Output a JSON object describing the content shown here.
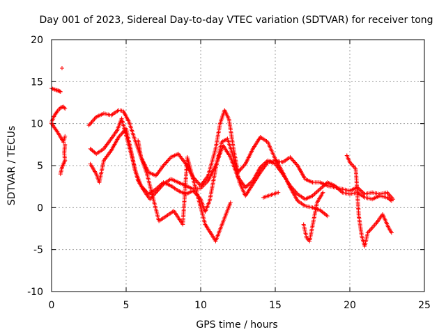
{
  "chart_data": {
    "type": "scatter",
    "title": "Day 001 of 2023, Sidereal Day-to-day VTEC variation (SDTVAR) for receiver tong",
    "xlabel": "GPS time / hours",
    "ylabel": "SDTVAR / TECUs",
    "xlim": [
      0,
      25
    ],
    "ylim": [
      -10,
      20
    ],
    "xticks": [
      "0",
      "5",
      "10",
      "15",
      "20",
      "25"
    ],
    "yticks": [
      "-10",
      "-5",
      "0",
      "5",
      "10",
      "15",
      "20"
    ],
    "grid": true,
    "marker": "+",
    "color": "#ff0000",
    "series": [
      {
        "name": "trace-a",
        "points": [
          [
            0.0,
            14.2
          ],
          [
            0.3,
            14.0
          ],
          [
            0.5,
            13.9
          ],
          [
            0.6,
            13.8
          ]
        ]
      },
      {
        "name": "outlier",
        "points": [
          [
            0.7,
            16.6
          ]
        ]
      },
      {
        "name": "trace-b",
        "points": [
          [
            0.0,
            10.2
          ],
          [
            0.2,
            11.0
          ],
          [
            0.4,
            11.5
          ],
          [
            0.6,
            11.9
          ],
          [
            0.8,
            12.0
          ],
          [
            0.9,
            11.8
          ]
        ]
      },
      {
        "name": "trace-c",
        "points": [
          [
            0.0,
            10.0
          ],
          [
            0.2,
            9.5
          ],
          [
            0.4,
            9.0
          ],
          [
            0.6,
            8.4
          ],
          [
            0.8,
            7.8
          ],
          [
            0.9,
            8.5
          ]
        ]
      },
      {
        "name": "trace-d",
        "points": [
          [
            0.6,
            4.0
          ],
          [
            0.7,
            4.8
          ],
          [
            0.8,
            5.2
          ],
          [
            0.9,
            5.6
          ],
          [
            0.85,
            6.5
          ],
          [
            0.9,
            7.5
          ]
        ]
      },
      {
        "name": "trace-e",
        "points": [
          [
            2.5,
            9.8
          ],
          [
            3.0,
            10.8
          ],
          [
            3.5,
            11.2
          ],
          [
            4.0,
            11.0
          ],
          [
            4.5,
            11.6
          ],
          [
            4.8,
            11.5
          ],
          [
            5.2,
            10.2
          ],
          [
            5.6,
            8.0
          ],
          [
            6.0,
            6.0
          ],
          [
            6.5,
            4.2
          ],
          [
            7.0,
            3.8
          ],
          [
            7.5,
            5.0
          ],
          [
            8.0,
            6.0
          ],
          [
            8.5,
            6.4
          ],
          [
            9.0,
            5.2
          ],
          [
            9.5,
            3.6
          ],
          [
            10.0,
            2.6
          ],
          [
            10.5,
            3.8
          ],
          [
            11.0,
            7.0
          ],
          [
            11.3,
            10.0
          ],
          [
            11.6,
            11.6
          ],
          [
            11.9,
            10.5
          ],
          [
            12.2,
            7.0
          ],
          [
            12.5,
            4.2
          ],
          [
            13.0,
            5.2
          ],
          [
            13.5,
            7.0
          ],
          [
            14.0,
            8.4
          ],
          [
            14.5,
            7.8
          ],
          [
            15.0,
            5.8
          ],
          [
            15.5,
            4.2
          ],
          [
            16.0,
            2.4
          ],
          [
            16.5,
            0.8
          ],
          [
            17.0,
            0.2
          ],
          [
            17.5,
            0.0
          ],
          [
            18.0,
            -0.3
          ],
          [
            18.5,
            -1.0
          ]
        ]
      },
      {
        "name": "trace-f",
        "points": [
          [
            2.6,
            7.0
          ],
          [
            3.0,
            6.4
          ],
          [
            3.5,
            7.0
          ],
          [
            4.0,
            8.2
          ],
          [
            4.4,
            9.2
          ],
          [
            4.7,
            10.6
          ],
          [
            5.0,
            8.6
          ],
          [
            5.4,
            6.0
          ],
          [
            5.8,
            3.2
          ],
          [
            6.2,
            2.0
          ],
          [
            6.6,
            1.0
          ],
          [
            7.0,
            1.8
          ],
          [
            7.5,
            2.8
          ],
          [
            8.0,
            3.4
          ],
          [
            8.5,
            3.0
          ],
          [
            9.0,
            2.6
          ],
          [
            9.5,
            2.2
          ],
          [
            10.0,
            2.3
          ],
          [
            10.5,
            3.2
          ],
          [
            11.0,
            5.0
          ],
          [
            11.5,
            7.4
          ],
          [
            12.0,
            6.0
          ],
          [
            12.5,
            3.6
          ],
          [
            13.0,
            2.4
          ],
          [
            13.5,
            3.2
          ],
          [
            14.0,
            4.8
          ],
          [
            14.5,
            5.6
          ],
          [
            15.0,
            5.2
          ],
          [
            15.5,
            4.0
          ],
          [
            16.0,
            2.6
          ],
          [
            16.5,
            1.6
          ],
          [
            17.0,
            1.0
          ],
          [
            17.5,
            1.4
          ],
          [
            18.0,
            2.2
          ],
          [
            18.5,
            3.0
          ],
          [
            19.0,
            2.6
          ],
          [
            19.5,
            1.8
          ],
          [
            20.0,
            1.6
          ],
          [
            20.5,
            1.8
          ],
          [
            21.0,
            1.2
          ],
          [
            21.5,
            1.0
          ],
          [
            22.0,
            1.4
          ],
          [
            22.5,
            1.2
          ],
          [
            22.8,
            0.8
          ]
        ]
      },
      {
        "name": "trace-g",
        "points": [
          [
            2.6,
            5.2
          ],
          [
            3.0,
            4.0
          ],
          [
            3.2,
            3.0
          ],
          [
            3.5,
            5.6
          ],
          [
            4.0,
            6.8
          ],
          [
            4.5,
            8.4
          ],
          [
            5.0,
            9.4
          ],
          [
            5.3,
            7.0
          ],
          [
            5.6,
            4.4
          ],
          [
            6.0,
            2.6
          ],
          [
            6.5,
            1.6
          ],
          [
            7.0,
            2.2
          ],
          [
            7.5,
            3.0
          ],
          [
            8.0,
            2.6
          ],
          [
            8.5,
            2.0
          ],
          [
            9.0,
            1.6
          ],
          [
            9.5,
            2.0
          ],
          [
            10.0,
            1.0
          ],
          [
            10.3,
            -0.5
          ],
          [
            10.6,
            0.8
          ],
          [
            11.0,
            4.6
          ],
          [
            11.4,
            7.8
          ],
          [
            11.8,
            8.2
          ],
          [
            12.2,
            6.0
          ],
          [
            12.6,
            3.0
          ],
          [
            13.0,
            1.4
          ],
          [
            13.5,
            2.8
          ],
          [
            14.0,
            4.2
          ],
          [
            14.5,
            5.4
          ],
          [
            15.0,
            5.6
          ],
          [
            15.5,
            5.4
          ],
          [
            16.0,
            6.0
          ],
          [
            16.5,
            5.0
          ],
          [
            17.0,
            3.4
          ],
          [
            17.5,
            3.0
          ],
          [
            18.0,
            3.0
          ],
          [
            18.5,
            2.6
          ],
          [
            19.0,
            2.4
          ],
          [
            19.5,
            2.2
          ],
          [
            20.0,
            2.0
          ],
          [
            20.5,
            2.4
          ],
          [
            21.0,
            1.6
          ],
          [
            21.5,
            1.8
          ],
          [
            22.0,
            1.6
          ],
          [
            22.5,
            1.8
          ],
          [
            22.9,
            1.0
          ]
        ]
      },
      {
        "name": "trace-h",
        "points": [
          [
            5.8,
            8.0
          ],
          [
            6.0,
            6.0
          ],
          [
            6.2,
            5.0
          ],
          [
            6.4,
            4.0
          ],
          [
            7.2,
            -1.6
          ],
          [
            8.2,
            -0.4
          ],
          [
            8.8,
            -2.0
          ],
          [
            9.1,
            6.0
          ],
          [
            9.4,
            4.0
          ],
          [
            9.8,
            1.4
          ],
          [
            10.3,
            -2.0
          ],
          [
            10.8,
            -3.4
          ],
          [
            11.0,
            -4.0
          ],
          [
            12.0,
            0.6
          ],
          [
            14.2,
            1.2
          ],
          [
            15.2,
            1.8
          ],
          [
            16.9,
            -2.0
          ],
          [
            17.1,
            -3.6
          ],
          [
            17.3,
            -4.0
          ],
          [
            17.8,
            0.6
          ],
          [
            18.2,
            1.8
          ],
          [
            19.8,
            6.2
          ],
          [
            20.0,
            5.4
          ],
          [
            20.4,
            4.6
          ],
          [
            20.6,
            -1.0
          ],
          [
            20.8,
            -3.4
          ],
          [
            21.0,
            -4.6
          ],
          [
            21.2,
            -3.0
          ],
          [
            21.8,
            -1.8
          ],
          [
            22.2,
            -0.8
          ],
          [
            22.6,
            -2.4
          ],
          [
            22.8,
            -3.0
          ]
        ]
      }
    ]
  }
}
